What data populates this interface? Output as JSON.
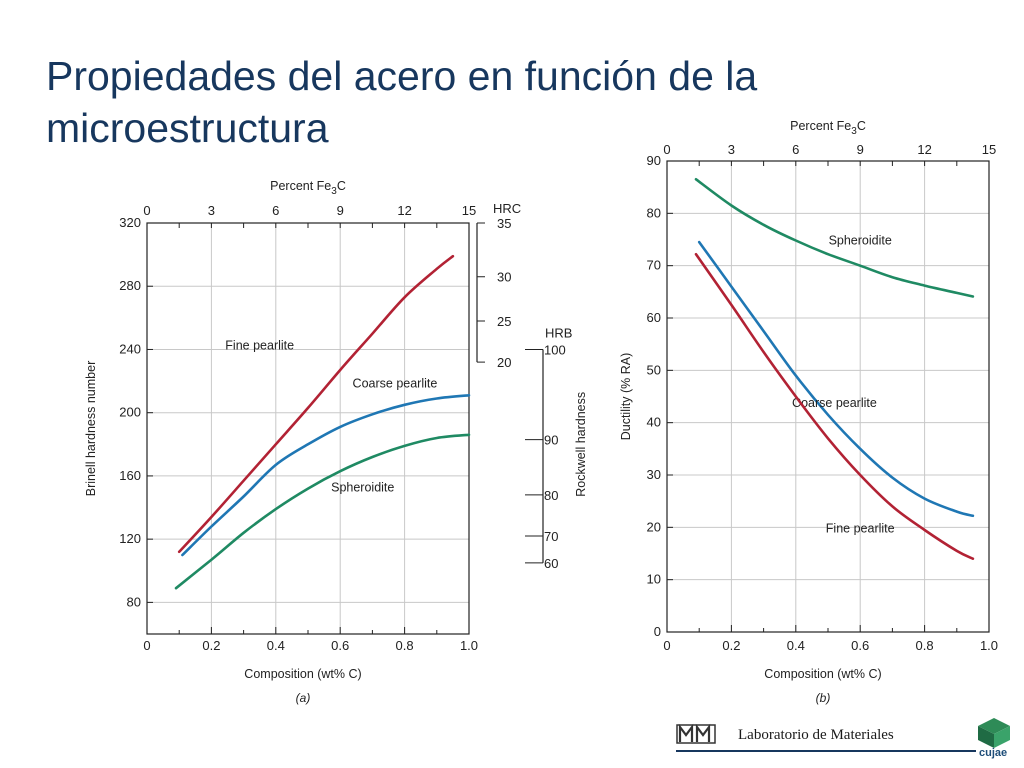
{
  "slide": {
    "title": "Propiedades del acero en función de la microestructura"
  },
  "footer": {
    "lab_name": "Laboratorio de Materiales",
    "university": "cujae",
    "line_color": "#17375e"
  },
  "chart_data": [
    {
      "type": "line",
      "panel_label": "(a)",
      "xlabel": "Composition (wt% C)",
      "ylabel": "Brinell hardness number",
      "xlim": [
        0,
        1.0
      ],
      "ylim": [
        60,
        320
      ],
      "x_ticks": [
        "0",
        "0.2",
        "0.4",
        "0.6",
        "0.8",
        "1.0"
      ],
      "y_ticks": [
        "80",
        "120",
        "160",
        "200",
        "240",
        "280",
        "320"
      ],
      "top_axis": {
        "label": "Percent Fe3C",
        "ticks": [
          "0",
          "3",
          "6",
          "9",
          "12",
          "15"
        ]
      },
      "hrc_axis": {
        "label": "HRC",
        "ticks": [
          {
            "label": "35",
            "hb": 320
          },
          {
            "label": "30",
            "hb": 286
          },
          {
            "label": "25",
            "hb": 258
          },
          {
            "label": "20",
            "hb": 232
          }
        ]
      },
      "hrb_axis": {
        "label": "HRB",
        "ticks": [
          {
            "label": "100",
            "hb": 240
          },
          {
            "label": "90",
            "hb": 183
          },
          {
            "label": "80",
            "hb": 148
          },
          {
            "label": "70",
            "hb": 122
          },
          {
            "label": "60",
            "hb": 105
          }
        ]
      },
      "right_label": "Rockwell hardness",
      "grid": true,
      "series": [
        {
          "name": "Fine pearlite",
          "color": "#b22234",
          "x": [
            0.1,
            0.2,
            0.3,
            0.4,
            0.5,
            0.6,
            0.7,
            0.8,
            0.9,
            0.95
          ],
          "y": [
            112,
            134,
            157,
            180,
            203,
            227,
            250,
            273,
            291,
            299
          ],
          "label_at": [
            0.35,
            240
          ]
        },
        {
          "name": "Coarse pearlite",
          "color": "#1f77b4",
          "x": [
            0.11,
            0.2,
            0.3,
            0.4,
            0.5,
            0.6,
            0.7,
            0.8,
            0.9,
            1.0
          ],
          "y": [
            110,
            128,
            147,
            167,
            180,
            191,
            199,
            205,
            209,
            211
          ],
          "label_at": [
            0.77,
            216
          ]
        },
        {
          "name": "Spheroidite",
          "color": "#1f8a63",
          "x": [
            0.09,
            0.2,
            0.3,
            0.4,
            0.5,
            0.6,
            0.7,
            0.8,
            0.9,
            1.0
          ],
          "y": [
            89,
            107,
            124,
            139,
            152,
            163,
            172,
            179,
            184,
            186
          ],
          "label_at": [
            0.67,
            150
          ]
        }
      ]
    },
    {
      "type": "line",
      "panel_label": "(b)",
      "xlabel": "Composition (wt% C)",
      "ylabel": "Ductility (% RA)",
      "xlim": [
        0,
        1.0
      ],
      "ylim": [
        0,
        90
      ],
      "x_ticks": [
        "0",
        "0.2",
        "0.4",
        "0.6",
        "0.8",
        "1.0"
      ],
      "y_ticks": [
        "0",
        "10",
        "20",
        "30",
        "40",
        "50",
        "60",
        "70",
        "80",
        "90"
      ],
      "top_axis": {
        "label": "Percent Fe3C",
        "ticks": [
          "0",
          "3",
          "6",
          "9",
          "12",
          "15"
        ]
      },
      "grid": true,
      "series": [
        {
          "name": "Spheroidite",
          "color": "#1f8a63",
          "x": [
            0.09,
            0.2,
            0.3,
            0.4,
            0.5,
            0.6,
            0.7,
            0.8,
            0.9,
            0.95
          ],
          "y": [
            86.5,
            81.5,
            77.8,
            74.8,
            72.2,
            70,
            67.8,
            66.2,
            64.8,
            64.1
          ],
          "label_at": [
            0.6,
            74
          ]
        },
        {
          "name": "Coarse pearlite",
          "color": "#1f77b4",
          "x": [
            0.1,
            0.2,
            0.3,
            0.4,
            0.5,
            0.6,
            0.7,
            0.8,
            0.9,
            0.95
          ],
          "y": [
            74.5,
            66,
            57.5,
            49,
            41.5,
            35,
            29.5,
            25.5,
            23,
            22.2
          ],
          "label_at": [
            0.52,
            43
          ]
        },
        {
          "name": "Fine pearlite",
          "color": "#b22234",
          "x": [
            0.09,
            0.2,
            0.3,
            0.4,
            0.5,
            0.6,
            0.7,
            0.8,
            0.9,
            0.95
          ],
          "y": [
            72.2,
            62.5,
            53.5,
            45,
            37,
            30,
            24,
            19.5,
            15.5,
            14
          ],
          "label_at": [
            0.6,
            19
          ]
        }
      ]
    }
  ]
}
